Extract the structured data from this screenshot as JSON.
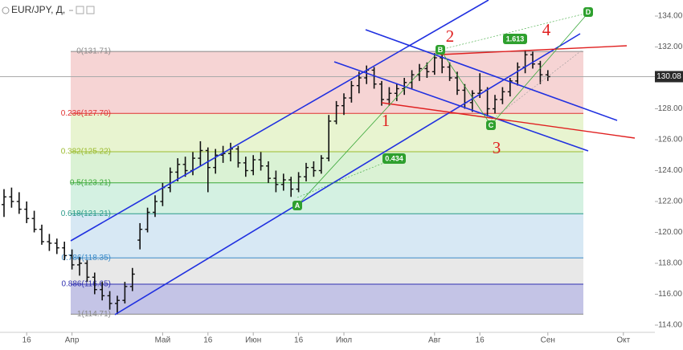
{
  "chart_data": {
    "type": "ohlc",
    "title": "EUR/JPY, Д,",
    "categories": [
      null,
      null,
      null,
      "16",
      null,
      null,
      null,
      null,
      null,
      "Апр",
      null,
      null,
      null,
      null,
      null,
      null,
      null,
      null,
      null,
      null,
      null,
      "Май",
      null,
      null,
      null,
      null,
      null,
      "16",
      null,
      null,
      null,
      null,
      null,
      "Июн",
      null,
      null,
      null,
      null,
      null,
      "16",
      null,
      null,
      null,
      null,
      null,
      "Июл",
      null,
      null,
      null,
      null,
      null,
      null,
      null,
      null,
      null,
      null,
      null,
      "Авг",
      null,
      null,
      null,
      null,
      null,
      "16",
      null,
      null,
      null,
      null,
      null,
      null,
      null,
      null,
      "Сен",
      null,
      null,
      null,
      null,
      null,
      null,
      null,
      null,
      null,
      "Окт",
      null,
      null,
      null
    ],
    "series": [
      {
        "name": "EUR/JPY",
        "color": "#111111",
        "open": [
          121.8,
          122.3,
          122.0,
          121.5,
          120.9,
          120.2,
          119.4,
          119.3,
          119.0,
          118.5,
          117.9,
          118.0,
          117.1,
          116.3,
          115.9,
          115.4,
          115.6,
          116.5,
          119.5,
          120.2,
          121.3,
          122.0,
          122.9,
          123.9,
          124.4,
          124.0,
          124.8,
          125.3,
          124.2,
          125.0,
          125.1,
          125.4,
          124.5,
          124.0,
          124.7,
          124.3,
          123.5,
          123.1,
          123.4,
          122.8,
          123.6,
          124.2,
          124.0,
          124.8,
          127.2,
          128.2,
          128.7,
          129.5,
          130.0,
          130.5,
          129.6,
          128.6,
          129.0,
          129.3,
          129.7,
          130.2,
          130.6,
          130.4,
          131.3,
          130.7,
          130.0,
          129.2,
          128.4,
          129.0,
          129.2,
          128.0,
          128.6,
          129.1,
          129.8,
          130.7,
          131.5,
          130.9,
          130.2,
          null,
          null,
          null,
          null,
          null,
          null,
          null,
          null,
          null,
          null,
          null,
          null,
          null
        ],
        "high": [
          122.8,
          122.9,
          122.6,
          122.0,
          121.4,
          120.5,
          119.9,
          119.6,
          119.4,
          118.9,
          118.4,
          118.2,
          117.4,
          116.8,
          116.2,
          115.9,
          116.8,
          117.7,
          120.6,
          121.6,
          122.4,
          123.2,
          124.2,
          124.8,
          124.9,
          125.2,
          125.9,
          125.5,
          125.4,
          125.6,
          125.8,
          125.6,
          124.9,
          125.0,
          125.2,
          124.6,
          124.0,
          123.8,
          123.6,
          123.9,
          124.5,
          124.6,
          125.0,
          127.6,
          128.5,
          129.0,
          129.8,
          130.4,
          130.8,
          130.7,
          129.8,
          129.4,
          129.6,
          130.0,
          130.5,
          130.9,
          131.0,
          131.6,
          131.5,
          131.0,
          130.4,
          129.6,
          129.2,
          130.3,
          129.4,
          128.9,
          129.4,
          130.0,
          131.0,
          131.8,
          131.7,
          131.1,
          130.5,
          null,
          null,
          null,
          null,
          null,
          null,
          null,
          null,
          null,
          null,
          null,
          null,
          null
        ],
        "low": [
          121.0,
          121.6,
          121.2,
          120.6,
          120.0,
          119.2,
          118.8,
          118.6,
          118.2,
          117.6,
          117.2,
          116.8,
          116.0,
          115.6,
          115.0,
          114.71,
          115.4,
          116.2,
          118.9,
          120.0,
          121.0,
          121.7,
          122.6,
          123.3,
          123.6,
          123.7,
          124.3,
          122.6,
          123.8,
          124.5,
          124.6,
          124.2,
          123.6,
          123.7,
          124.0,
          123.2,
          122.6,
          122.7,
          122.3,
          122.6,
          123.3,
          123.6,
          123.8,
          124.6,
          127.0,
          127.6,
          128.4,
          129.0,
          129.6,
          129.3,
          128.2,
          128.2,
          128.5,
          128.9,
          129.3,
          129.8,
          130.0,
          130.2,
          130.3,
          129.8,
          128.9,
          128.0,
          127.8,
          128.7,
          127.5,
          127.7,
          128.3,
          128.8,
          129.5,
          130.3,
          130.6,
          129.6,
          129.8,
          null,
          null,
          null,
          null,
          null,
          null,
          null,
          null,
          null,
          null,
          null,
          null,
          null
        ],
        "close": [
          122.3,
          122.0,
          121.5,
          120.9,
          120.2,
          119.4,
          119.3,
          119.0,
          118.5,
          117.9,
          118.0,
          117.1,
          116.3,
          115.9,
          115.4,
          115.6,
          116.5,
          117.3,
          120.2,
          121.3,
          122.0,
          122.9,
          123.9,
          124.4,
          124.0,
          124.8,
          125.3,
          124.2,
          125.0,
          125.1,
          125.4,
          124.5,
          124.0,
          124.7,
          124.3,
          123.5,
          123.1,
          123.4,
          122.8,
          123.6,
          124.2,
          124.0,
          124.8,
          127.2,
          128.2,
          128.7,
          129.5,
          130.0,
          130.5,
          129.6,
          128.6,
          129.0,
          129.3,
          129.7,
          130.2,
          130.6,
          130.4,
          131.3,
          130.7,
          130.0,
          129.2,
          128.4,
          129.0,
          129.2,
          128.0,
          128.6,
          129.1,
          129.8,
          130.7,
          131.5,
          130.9,
          130.2,
          130.08,
          null,
          null,
          null,
          null,
          null,
          null,
          null,
          null,
          null,
          null,
          null,
          null,
          null
        ]
      }
    ],
    "ylim": [
      113.48,
      135.04
    ],
    "yticks": [
      {
        "value": 114,
        "label": "114.00"
      },
      {
        "value": 116,
        "label": "116.00"
      },
      {
        "value": 118,
        "label": "118.00"
      },
      {
        "value": 120,
        "label": "120.00"
      },
      {
        "value": 122,
        "label": "122.00"
      },
      {
        "value": 124,
        "label": "124.00"
      },
      {
        "value": 126,
        "label": "126.00"
      },
      {
        "value": 128,
        "label": "128.00"
      },
      {
        "value": 130,
        "label": "130.00"
      },
      {
        "value": 132,
        "label": "132.00"
      },
      {
        "value": 134,
        "label": "134.00"
      }
    ],
    "last_price": {
      "value": 130.08,
      "label": "130.08"
    },
    "fib": {
      "levels": [
        {
          "value": 131.71,
          "label": "0(131.71)",
          "color": "#888888"
        },
        {
          "value": 127.7,
          "label": "0.236(127.70)",
          "color": "#e03030"
        },
        {
          "value": 125.22,
          "label": "0.382(125.22)",
          "color": "#9bbb2e"
        },
        {
          "value": 123.21,
          "label": "0.5(123.21)",
          "color": "#3aa83a"
        },
        {
          "value": 121.21,
          "label": "0.618(121.21)",
          "color": "#2a9a8a"
        },
        {
          "value": 118.35,
          "label": "0.786(118.35)",
          "color": "#3a8ac8"
        },
        {
          "value": 116.65,
          "label": "0.886(116.65)",
          "color": "#3030b0"
        },
        {
          "value": 114.71,
          "label": "1(114.71)",
          "color": "#888888"
        }
      ],
      "band_colors": [
        "#f4cccc",
        "#e4f2c8",
        "#d4f0cc",
        "#cdeedd",
        "#d0e4f2",
        "#e4e4e4",
        "#babae2"
      ]
    },
    "annotations": {
      "waves": [
        "1",
        "2",
        "3",
        "4"
      ],
      "points": [
        "A",
        "B",
        "C",
        "D"
      ],
      "ratios": [
        "0.434",
        "1.613"
      ]
    }
  }
}
